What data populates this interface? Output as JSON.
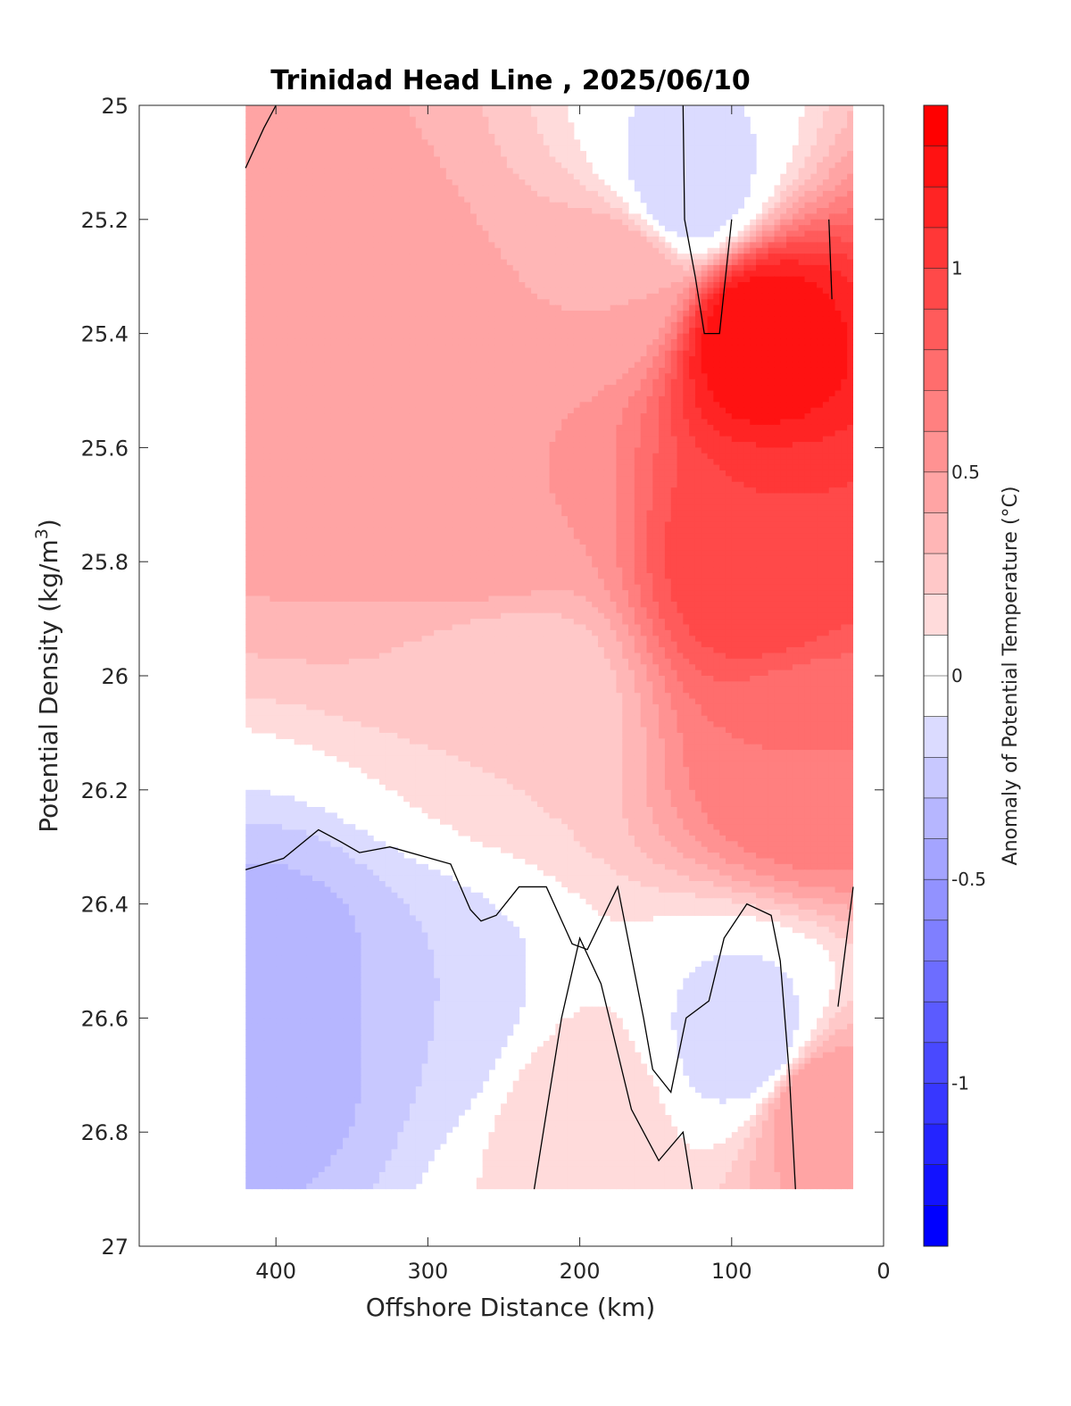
{
  "chart_data": {
    "type": "heatmap",
    "subtype": "filled contour section",
    "title": "Trinidad Head Line , 2025/06/10",
    "xlabel": "Offshore Distance (km)",
    "ylabel_main": "Potential Density (kg/m",
    "ylabel_sup": "3",
    "ylabel_close": ")",
    "colorbar_label": "Anomaly of Potential Temperature (°C)",
    "x_axis": {
      "lim": [
        490,
        0
      ],
      "reversed": true,
      "ticks": [
        400,
        300,
        200,
        100,
        0
      ],
      "tick_labels": [
        "400",
        "300",
        "200",
        "100",
        "0"
      ]
    },
    "y_axis": {
      "lim": [
        25,
        27
      ],
      "reversed": true,
      "ticks": [
        25,
        25.2,
        25.4,
        25.6,
        25.8,
        26,
        26.2,
        26.4,
        26.6,
        26.8,
        27
      ],
      "tick_labels": [
        "25",
        "25.2",
        "25.4",
        "25.6",
        "25.8",
        "26",
        "26.2",
        "26.4",
        "26.6",
        "26.8",
        "27"
      ]
    },
    "colorbar": {
      "lim": [
        -1.4,
        1.4
      ],
      "step": 0.1,
      "ticks": [
        1,
        0.5,
        0,
        -0.5,
        -1
      ],
      "tick_labels": [
        "1",
        "0.5",
        "0",
        "-0.5",
        "-1"
      ],
      "colormap": "blue-white-red",
      "min_color": "#0000ff",
      "max_color": "#ff0000",
      "zero_color": "#ffffff"
    },
    "data_extent_x": [
      420,
      20
    ],
    "data_extent_y": [
      25,
      26.9
    ],
    "regions": [
      {
        "x": 385,
        "y": 25.45,
        "value": 0.5
      },
      {
        "x": 315,
        "y": 25.45,
        "value": 0.45
      },
      {
        "x": 255,
        "y": 25.7,
        "value": 0.5
      },
      {
        "x": 170,
        "y": 25.3,
        "value": 0.4
      },
      {
        "x": 85,
        "y": 25.4,
        "value": 1.3
      },
      {
        "x": 80,
        "y": 25.8,
        "value": 1.0
      },
      {
        "x": 50,
        "y": 26.15,
        "value": 0.7
      },
      {
        "x": 45,
        "y": 26.75,
        "value": 0.5
      },
      {
        "x": 200,
        "y": 26.8,
        "value": 0.2
      },
      {
        "x": 385,
        "y": 26.6,
        "value": -0.4
      },
      {
        "x": 300,
        "y": 26.6,
        "value": -0.2
      },
      {
        "x": 85,
        "y": 26.65,
        "value": -0.2
      },
      {
        "x": 130,
        "y": 25.15,
        "value": -0.2
      },
      {
        "x": 240,
        "y": 26.05,
        "value": 0.2
      }
    ],
    "zero_contour_note": "black line marks the 0 °C anomaly contour"
  }
}
